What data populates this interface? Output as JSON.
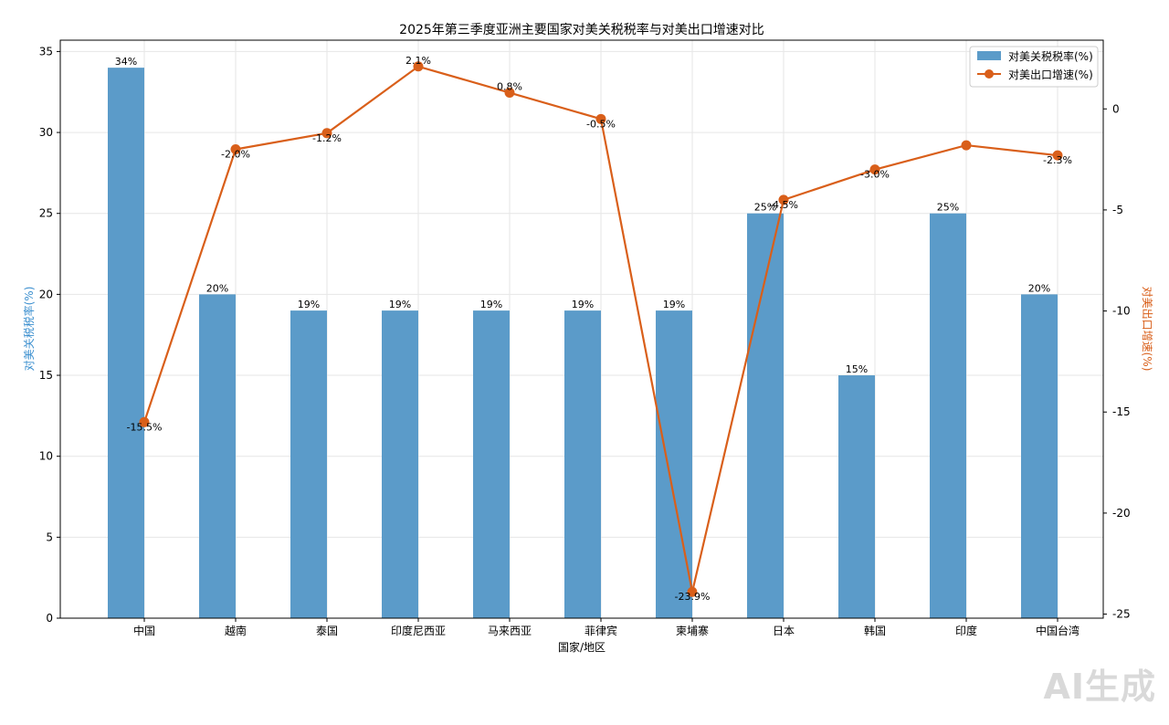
{
  "chart_data": {
    "type": "bar",
    "title": "2025年第三季度亚洲主要国家对美关税税率与对美出口增速对比",
    "xlabel": "国家/地区",
    "ylabel_left": "对美关税税率(%)",
    "ylabel_right": "对美出口增速(%)",
    "categories": [
      "中国",
      "越南",
      "泰国",
      "印度尼西亚",
      "马来西亚",
      "菲律宾",
      "柬埔寨",
      "日本",
      "韩国",
      "印度",
      "中国台湾"
    ],
    "series": [
      {
        "name": "对美关税税率(%)",
        "type": "bar",
        "axis": "left",
        "values": [
          34,
          20,
          19,
          19,
          19,
          19,
          19,
          25,
          15,
          25,
          20
        ],
        "labels": [
          "34%",
          "20%",
          "19%",
          "19%",
          "19%",
          "19%",
          "19%",
          "25%",
          "15%",
          "25%",
          "20%"
        ]
      },
      {
        "name": "对美出口增速(%)",
        "type": "line",
        "axis": "right",
        "values": [
          -15.5,
          -2.0,
          -1.2,
          2.1,
          0.8,
          -0.5,
          -23.9,
          -4.5,
          -3.0,
          -1.8,
          -2.3
        ],
        "labels": [
          "-15.5%",
          "-2.0%",
          "-1.2%",
          "2.1%",
          "0.8%",
          "-0.5%",
          "-23.9%",
          "-4.5%",
          "-3.0%",
          "",
          "-2.3%"
        ]
      }
    ],
    "ylim_left": [
      0,
      35.7
    ],
    "yticks_left": [
      0,
      5,
      10,
      15,
      20,
      25,
      30,
      35
    ],
    "ylim_right": [
      -25.2,
      3.4
    ],
    "yticks_right": [
      0,
      -5,
      -10,
      -15,
      -20,
      -25
    ],
    "grid": true,
    "legend": "top-right",
    "colors": {
      "bar": "#5b9bc9",
      "line": "#d95f1a",
      "left_axis_label": "#3b8fcf",
      "right_axis_label": "#d95f1a"
    }
  },
  "watermark": "AI生成"
}
